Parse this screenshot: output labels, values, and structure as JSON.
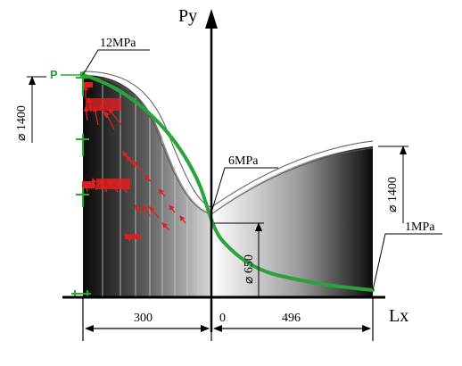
{
  "axes": {
    "y_label": "Py",
    "x_label": "Lx"
  },
  "pressure_labels": {
    "inlet": "12MPa",
    "throat": "6MPa",
    "outlet": "1MPa"
  },
  "force_label": "P",
  "diameters": {
    "inlet": "⌀ 1400",
    "outlet": "⌀ 1400",
    "throat": "⌀ 650"
  },
  "dimensions": {
    "left_length": "300",
    "origin": "0",
    "right_length": "496"
  },
  "colors": {
    "pressure_curve": "#2aa33a",
    "load_arrows": "#e02020",
    "supports": "#22b030"
  }
}
